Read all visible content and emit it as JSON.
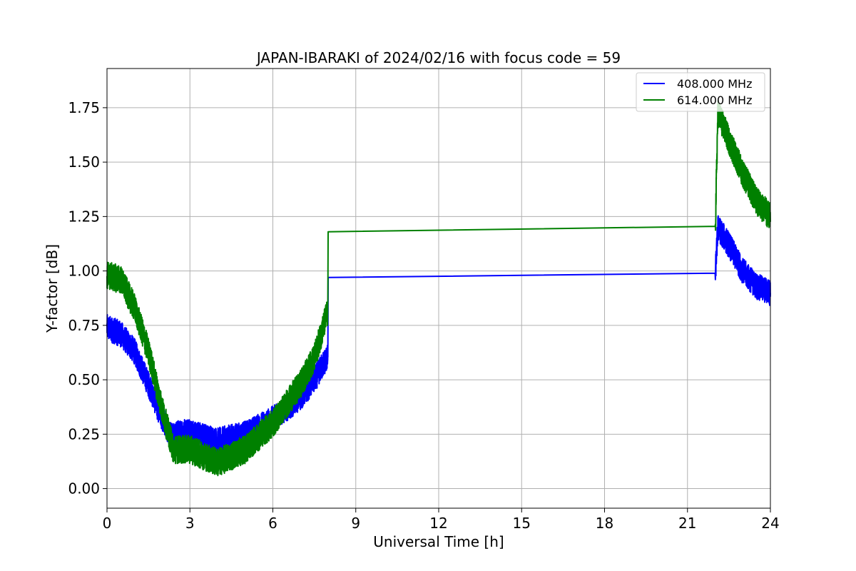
{
  "chart_data": {
    "type": "line",
    "title": "JAPAN-IBARAKI of 2024/02/16 with focus code = 59",
    "xlabel": "Universal Time [h]",
    "ylabel": "Y-factor [dB]",
    "xlim": [
      0,
      24
    ],
    "ylim": [
      -0.09,
      1.93
    ],
    "xticks": [
      0,
      3,
      6,
      9,
      12,
      15,
      18,
      21,
      24
    ],
    "yticks": [
      0.0,
      0.25,
      0.5,
      0.75,
      1.0,
      1.25,
      1.5,
      1.75
    ],
    "ytick_labels": [
      "0.00",
      "0.25",
      "0.50",
      "0.75",
      "1.00",
      "1.25",
      "1.50",
      "1.75"
    ],
    "grid": true,
    "legend_position": "top-right",
    "series": [
      {
        "name": "408.000 MHz",
        "color": "#0000ff",
        "noise_amplitude": 0.06,
        "x": [
          0.0,
          0.5,
          1.0,
          1.5,
          2.0,
          2.3,
          3.0,
          4.0,
          5.0,
          6.0,
          7.0,
          7.5,
          7.95,
          7.99,
          8.0,
          22.0,
          22.01,
          22.1,
          22.5,
          23.0,
          23.5,
          24.0
        ],
        "values": [
          0.74,
          0.71,
          0.63,
          0.48,
          0.32,
          0.25,
          0.26,
          0.22,
          0.25,
          0.32,
          0.42,
          0.5,
          0.6,
          0.6,
          0.97,
          0.99,
          0.99,
          1.2,
          1.12,
          1.0,
          0.93,
          0.9
        ],
        "noisy_ranges": [
          [
            0.0,
            7.99
          ],
          [
            22.01,
            24.0
          ]
        ]
      },
      {
        "name": "614.000 MHz",
        "color": "#008000",
        "noise_amplitude": 0.065,
        "x": [
          0.0,
          0.5,
          1.0,
          1.5,
          2.0,
          2.4,
          3.0,
          4.0,
          5.0,
          6.0,
          7.0,
          7.5,
          7.95,
          7.99,
          8.0,
          22.0,
          22.01,
          22.1,
          22.5,
          23.0,
          23.5,
          24.0
        ],
        "values": [
          0.98,
          0.96,
          0.83,
          0.63,
          0.36,
          0.18,
          0.18,
          0.12,
          0.18,
          0.3,
          0.48,
          0.6,
          0.8,
          0.8,
          1.18,
          1.205,
          1.205,
          1.73,
          1.6,
          1.45,
          1.32,
          1.25
        ],
        "noisy_ranges": [
          [
            0.0,
            7.99
          ],
          [
            22.01,
            24.0
          ]
        ]
      }
    ]
  }
}
